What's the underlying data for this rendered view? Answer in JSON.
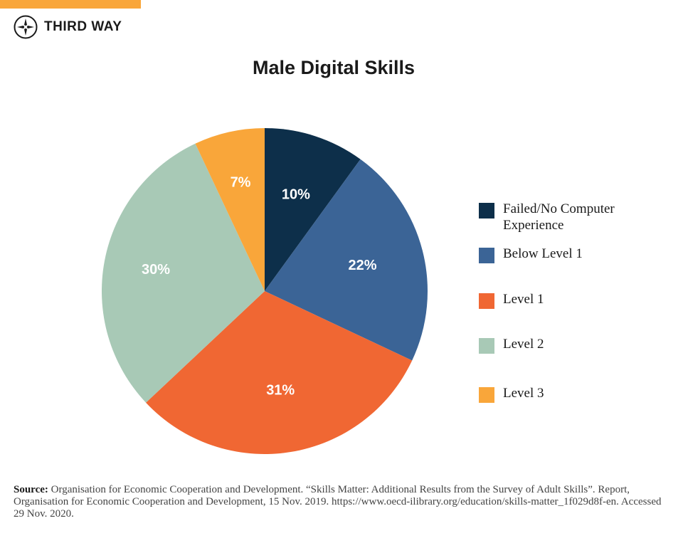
{
  "brand": {
    "name": "THIRD WAY",
    "accent_color": "#f9a63a"
  },
  "chart_data": {
    "type": "pie",
    "title": "Male Digital Skills",
    "start_angle_deg": 0,
    "direction": "clockwise",
    "slices": [
      {
        "name": "Failed/No Computer Experience",
        "value": 10,
        "label": "10%",
        "color": "#0d2f4a"
      },
      {
        "name": "Below Level 1",
        "value": 22,
        "label": "22%",
        "color": "#3b6496"
      },
      {
        "name": "Level 1",
        "value": 31,
        "label": "31%",
        "color": "#f06733"
      },
      {
        "name": "Level 2",
        "value": 30,
        "label": "30%",
        "color": "#a8c9b6"
      },
      {
        "name": "Level 3",
        "value": 7,
        "label": "7%",
        "color": "#f9a63a"
      }
    ],
    "legend_position": "right"
  },
  "source": {
    "label": "Source:",
    "text": "Organisation for Economic Cooperation and Development. “Skills Matter: Additional Results from the Survey of Adult Skills”. Report, Organisation for Economic Cooperation and Development, 15 Nov. 2019. https://www.oecd-ilibrary.org/education/skills-matter_1f029d8f-en. Accessed 29 Nov. 2020."
  }
}
